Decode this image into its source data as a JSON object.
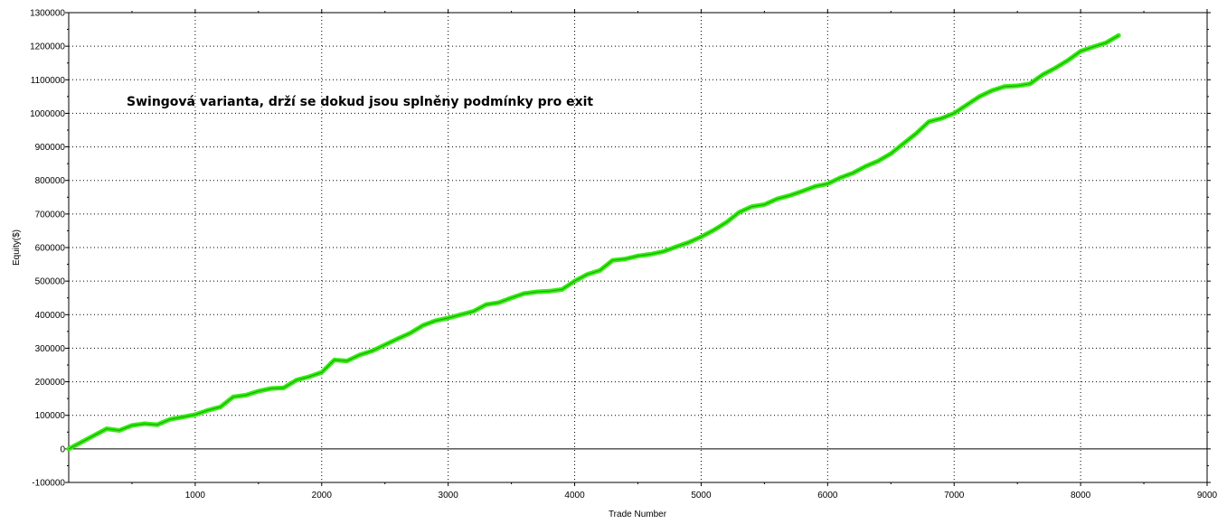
{
  "chart_data": {
    "type": "scatter",
    "title": "",
    "xlabel": "Trade Number",
    "ylabel": "Equity($)",
    "annotation": "Swingová varianta, drží se dokud jsou splněny podmínky pro exit",
    "xlim": [
      0,
      9000
    ],
    "ylim": [
      -100000,
      1300000
    ],
    "grid": true,
    "legend": "none",
    "x_ticks": [
      "1000",
      "2000",
      "3000",
      "4000",
      "5000",
      "6000",
      "7000",
      "8000",
      "9000"
    ],
    "y_ticks": [
      "-100000",
      "0",
      "100000",
      "200000",
      "300000",
      "400000",
      "500000",
      "600000",
      "700000",
      "800000",
      "900000",
      "1000000",
      "1100000",
      "1200000",
      "1300000"
    ],
    "series": [
      {
        "color": "#33ee11",
        "line_color": "#000000",
        "x": [
          0,
          100,
          200,
          300,
          400,
          500,
          600,
          700,
          800,
          900,
          1000,
          1100,
          1200,
          1300,
          1400,
          1500,
          1600,
          1700,
          1800,
          1900,
          2000,
          2100,
          2200,
          2300,
          2400,
          2500,
          2600,
          2700,
          2800,
          2900,
          3000,
          3100,
          3200,
          3300,
          3400,
          3500,
          3600,
          3700,
          3800,
          3900,
          4000,
          4100,
          4200,
          4300,
          4400,
          4500,
          4600,
          4700,
          4800,
          4900,
          5000,
          5100,
          5200,
          5300,
          5400,
          5500,
          5600,
          5700,
          5800,
          5900,
          6000,
          6100,
          6200,
          6300,
          6400,
          6500,
          6600,
          6700,
          6800,
          6900,
          7000,
          7100,
          7200,
          7300,
          7400,
          7500,
          7600,
          7700,
          7800,
          7900,
          8000,
          8100,
          8200,
          8300
        ],
        "y": [
          0,
          20000,
          40000,
          60000,
          55000,
          70000,
          75000,
          72000,
          88000,
          95000,
          102000,
          115000,
          125000,
          155000,
          160000,
          172000,
          180000,
          182000,
          205000,
          215000,
          228000,
          265000,
          262000,
          280000,
          292000,
          310000,
          328000,
          345000,
          368000,
          382000,
          390000,
          400000,
          410000,
          430000,
          436000,
          450000,
          463000,
          468000,
          470000,
          475000,
          500000,
          520000,
          532000,
          562000,
          566000,
          575000,
          580000,
          588000,
          602000,
          615000,
          632000,
          652000,
          675000,
          705000,
          722000,
          728000,
          745000,
          755000,
          768000,
          782000,
          790000,
          808000,
          822000,
          842000,
          858000,
          880000,
          910000,
          940000,
          975000,
          985000,
          1000000,
          1025000,
          1050000,
          1068000,
          1080000,
          1082000,
          1088000,
          1115000,
          1135000,
          1158000,
          1185000,
          1198000,
          1210000,
          1232000
        ]
      }
    ]
  }
}
